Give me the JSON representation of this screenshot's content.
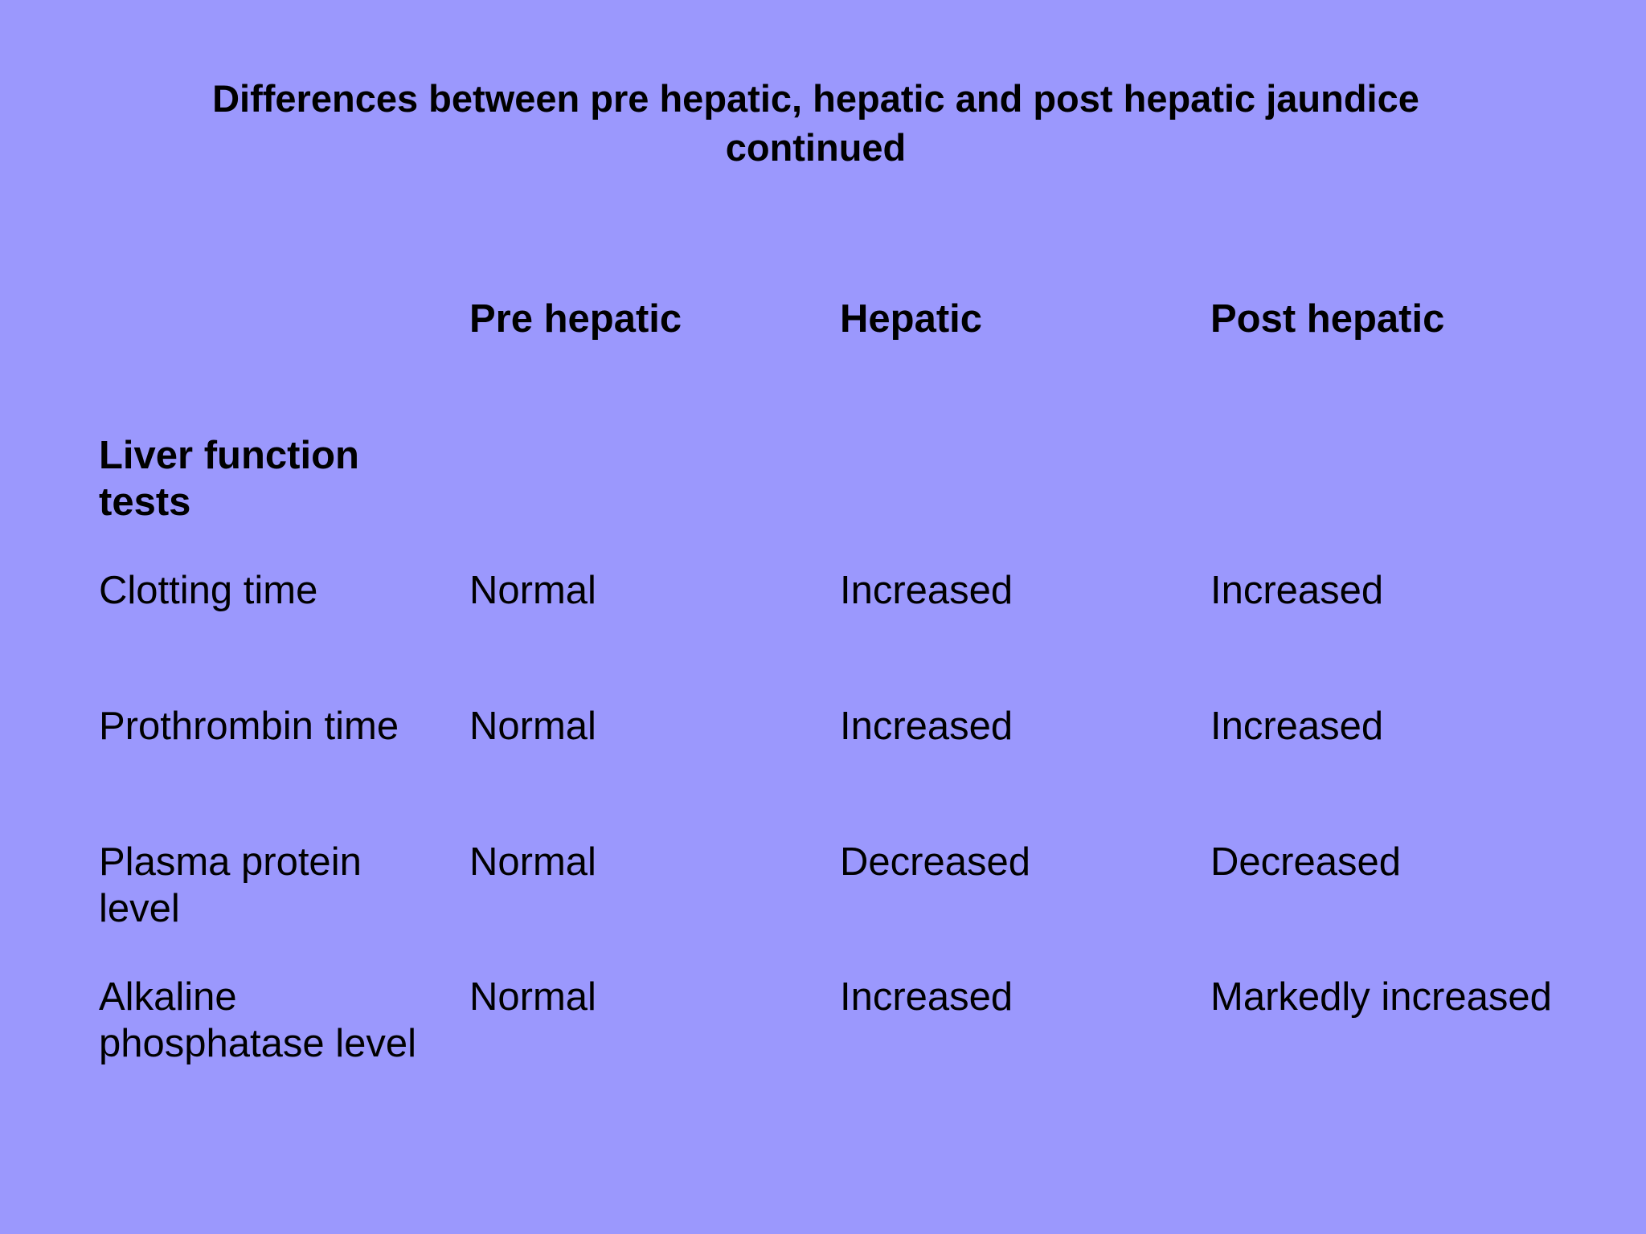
{
  "slide": {
    "background": "#9b98fd",
    "title_line1": "Differences between pre hepatic, hepatic and post hepatic jaundice",
    "title_line2": "continued"
  },
  "table": {
    "columns": [
      "Pre hepatic",
      "Hepatic",
      "Post hepatic"
    ],
    "section_label": "Liver function tests",
    "rows": [
      {
        "label": "Clotting time",
        "values": [
          "Normal",
          "Increased",
          "Increased"
        ]
      },
      {
        "label": "Prothrombin time",
        "values": [
          "Normal",
          "Increased",
          "Increased"
        ]
      },
      {
        "label": "Plasma protein level",
        "values": [
          "Normal",
          "Decreased",
          "Decreased"
        ]
      },
      {
        "label": "Alkaline phosphatase level",
        "values": [
          "Normal",
          "Increased",
          "Markedly increased"
        ]
      }
    ]
  }
}
